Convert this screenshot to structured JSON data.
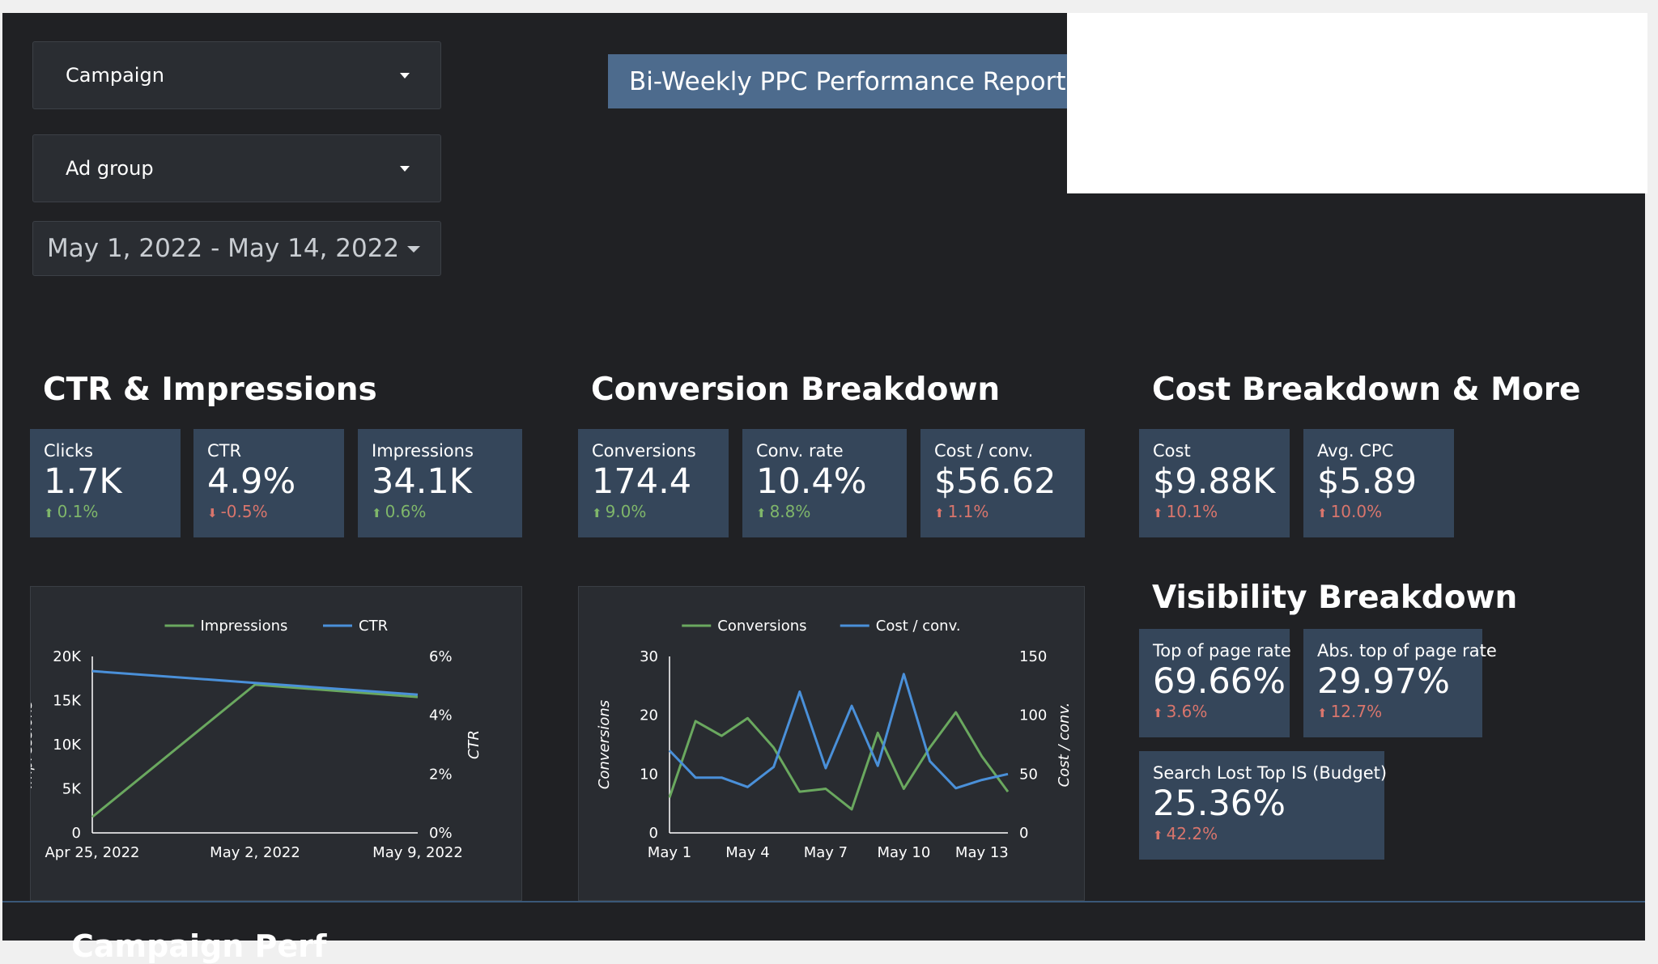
{
  "filters": {
    "campaign_label": "Campaign",
    "ad_group_label": "Ad group",
    "date_range": "May 1, 2022 - May 14, 2022"
  },
  "report_title": "Bi-Weekly PPC Performance Report",
  "sections": {
    "ctr": "CTR & Impressions",
    "conversion": "Conversion Breakdown",
    "cost": "Cost Breakdown & More",
    "visibility": "Visibility Breakdown",
    "bottom_partial": "Campaign Perf"
  },
  "kpis": {
    "clicks": {
      "label": "Clicks",
      "value": "1.7K",
      "delta": "0.1%",
      "direction": "up",
      "color": "#7fb66a"
    },
    "ctr": {
      "label": "CTR",
      "value": "4.9%",
      "delta": "-0.5%",
      "direction": "down",
      "color": "#d9756c"
    },
    "impressions": {
      "label": "Impressions",
      "value": "34.1K",
      "delta": "0.6%",
      "direction": "up",
      "color": "#7fb66a"
    },
    "conversions": {
      "label": "Conversions",
      "value": "174.4",
      "delta": "9.0%",
      "direction": "up",
      "color": "#7fb66a"
    },
    "conv_rate": {
      "label": "Conv. rate",
      "value": "10.4%",
      "delta": "8.8%",
      "direction": "up",
      "color": "#7fb66a"
    },
    "cost_per_conv": {
      "label": "Cost / conv.",
      "value": "$56.62",
      "delta": "1.1%",
      "direction": "up",
      "color": "#d9756c"
    },
    "cost": {
      "label": "Cost",
      "value": "$9.88K",
      "delta": "10.1%",
      "direction": "up",
      "color": "#d9756c"
    },
    "avg_cpc": {
      "label": "Avg. CPC",
      "value": "$5.89",
      "delta": "10.0%",
      "direction": "up",
      "color": "#d9756c"
    },
    "top_page_rate": {
      "label": "Top of page rate",
      "value": "69.66%",
      "delta": "3.6%",
      "direction": "up",
      "color": "#d9756c"
    },
    "abs_top_page_rate": {
      "label": "Abs. top of page rate",
      "value": "29.97%",
      "delta": "12.7%",
      "direction": "up",
      "color": "#d9756c"
    },
    "search_lost_top_is": {
      "label": "Search Lost Top IS (Budget)",
      "value": "25.36%",
      "delta": "42.2%",
      "direction": "up",
      "color": "#d9756c"
    }
  },
  "chart_data": [
    {
      "type": "line",
      "x": [
        "Apr 25, 2022",
        "May 2, 2022",
        "May 9, 2022"
      ],
      "x_tick_labels": [
        "Apr 25, 2022",
        "May 2, 2022",
        "May 9, 2022"
      ],
      "series": [
        {
          "name": "Impressions",
          "axis": "left",
          "color": "#6aa85f",
          "values": [
            1800,
            16800,
            15400
          ]
        },
        {
          "name": "CTR",
          "axis": "right",
          "color": "#4a90d9",
          "values": [
            5.5,
            5.1,
            4.7
          ]
        }
      ],
      "ylabel": "Impressions",
      "ylabel_right": "CTR",
      "ylim": [
        0,
        20000
      ],
      "y_ticks": [
        "0",
        "5K",
        "10K",
        "15K",
        "20K"
      ],
      "ylim_right": [
        0,
        6
      ],
      "y_ticks_right": [
        "0%",
        "2%",
        "4%",
        "6%"
      ],
      "legend": "top"
    },
    {
      "type": "line",
      "x": [
        "May 1",
        "May 2",
        "May 3",
        "May 4",
        "May 5",
        "May 6",
        "May 7",
        "May 8",
        "May 9",
        "May 10",
        "May 11",
        "May 12",
        "May 13",
        "May 14"
      ],
      "x_tick_labels": [
        "May 1",
        "May 4",
        "May 7",
        "May 10",
        "May 13"
      ],
      "series": [
        {
          "name": "Conversions",
          "axis": "left",
          "color": "#6aa85f",
          "values": [
            6,
            19,
            16.5,
            19.5,
            14.5,
            7,
            7.5,
            4,
            17,
            7.5,
            14.5,
            20.5,
            13,
            7
          ]
        },
        {
          "name": "Cost / conv.",
          "axis": "right",
          "color": "#4a90d9",
          "values": [
            70,
            47,
            47,
            39,
            56,
            120,
            55,
            108,
            57,
            135,
            61,
            38,
            45,
            50
          ]
        }
      ],
      "ylabel": "Conversions",
      "ylabel_right": "Cost / conv.",
      "ylim": [
        0,
        30
      ],
      "y_ticks": [
        "0",
        "10",
        "20",
        "30"
      ],
      "ylim_right": [
        0,
        150
      ],
      "y_ticks_right": [
        "0",
        "50",
        "100",
        "150"
      ],
      "legend": "top"
    }
  ]
}
